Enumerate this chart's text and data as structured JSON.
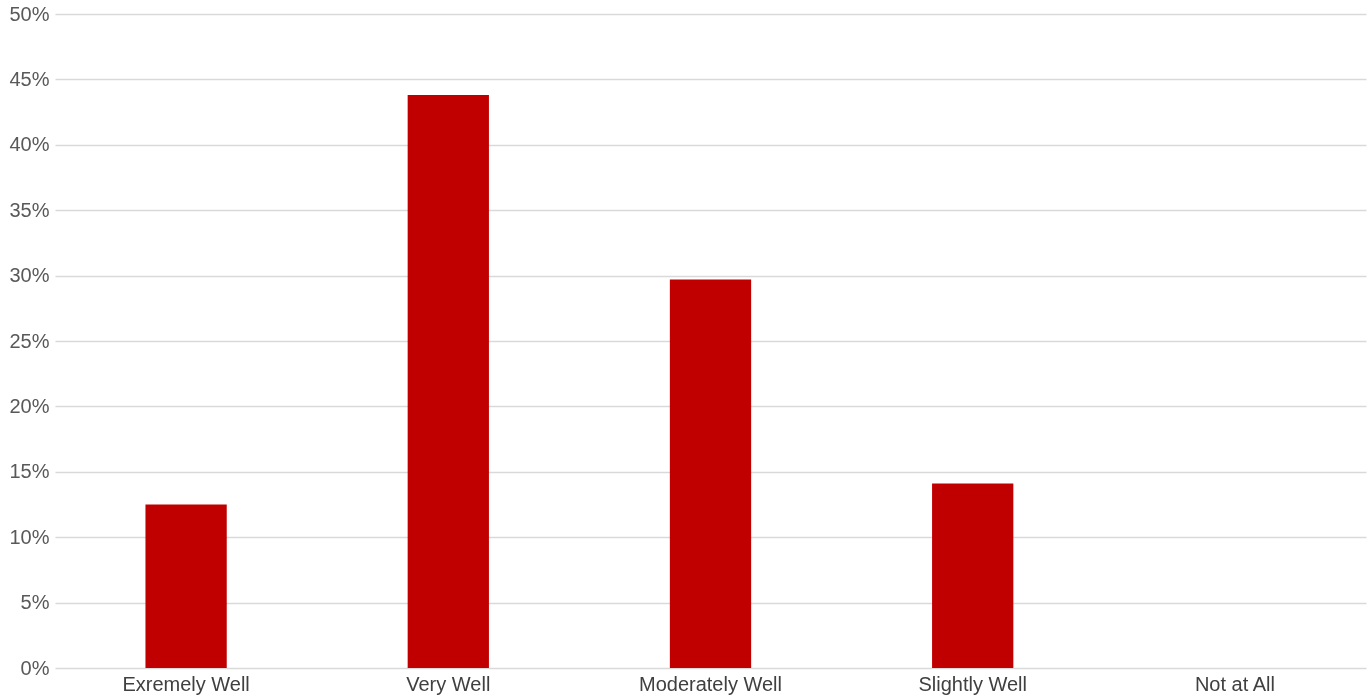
{
  "chart_data": {
    "type": "bar",
    "categories": [
      "Exremely Well",
      "Very Well",
      "Moderately Well",
      "Slightly Well",
      "Not at All"
    ],
    "values": [
      12.5,
      43.8,
      29.7,
      14.1,
      0
    ],
    "color": "#c00000",
    "ylim": [
      0,
      50
    ],
    "yticks": [
      {
        "value": 0,
        "label": "0%"
      },
      {
        "value": 5,
        "label": "5%"
      },
      {
        "value": 10,
        "label": "10%"
      },
      {
        "value": 15,
        "label": "15%"
      },
      {
        "value": 20,
        "label": "20%"
      },
      {
        "value": 25,
        "label": "25%"
      },
      {
        "value": 30,
        "label": "30%"
      },
      {
        "value": 35,
        "label": "35%"
      },
      {
        "value": 40,
        "label": "40%"
      },
      {
        "value": 45,
        "label": "45%"
      },
      {
        "value": 50,
        "label": "50%"
      }
    ],
    "grid": "y"
  }
}
